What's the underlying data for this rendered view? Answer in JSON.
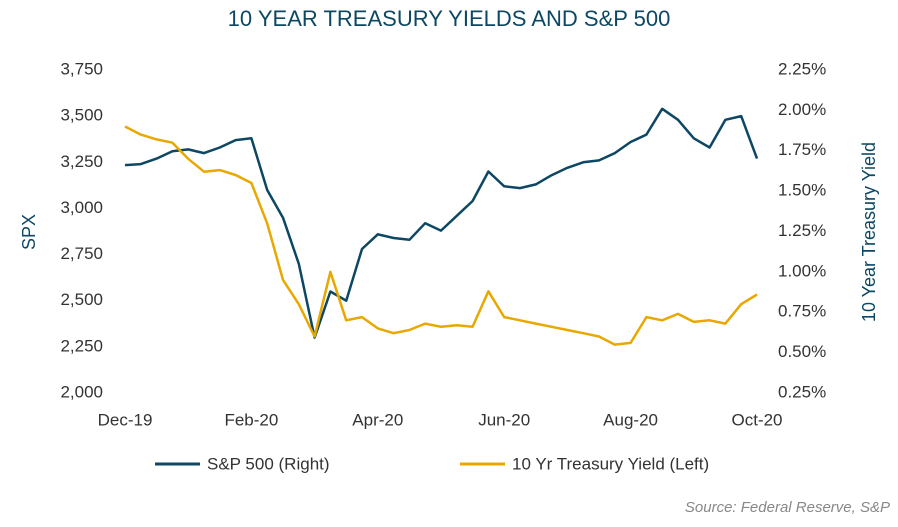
{
  "chart_data": {
    "type": "line",
    "title": "10 YEAR TREASURY YIELDS AND S&P 500",
    "y_label": "SPX",
    "y2_label": "10 Year Treasury Yield",
    "source": "Source: Federal Reserve, S&P",
    "xticks": [
      "Dec-19",
      "Feb-20",
      "Apr-20",
      "Jun-20",
      "Aug-20",
      "Oct-20"
    ],
    "ylim": [
      2000,
      3750
    ],
    "yticks": [
      {
        "value": 2000,
        "label": "2,000"
      },
      {
        "value": 2250,
        "label": "2,250"
      },
      {
        "value": 2500,
        "label": "2,500"
      },
      {
        "value": 2750,
        "label": "2,750"
      },
      {
        "value": 3000,
        "label": "3,000"
      },
      {
        "value": 3250,
        "label": "3,250"
      },
      {
        "value": 3500,
        "label": "3,500"
      },
      {
        "value": 3750,
        "label": "3,750"
      }
    ],
    "y2lim": [
      0.25,
      2.25
    ],
    "y2ticks": [
      {
        "value": 0.25,
        "label": "0.25%"
      },
      {
        "value": 0.5,
        "label": "0.50%"
      },
      {
        "value": 0.75,
        "label": "0.75%"
      },
      {
        "value": 1.0,
        "label": "1.00%"
      },
      {
        "value": 1.25,
        "label": "1.25%"
      },
      {
        "value": 1.5,
        "label": "1.50%"
      },
      {
        "value": 1.75,
        "label": "1.75%"
      },
      {
        "value": 2.0,
        "label": "2.00%"
      },
      {
        "value": 2.25,
        "label": "2.25%"
      }
    ],
    "grid": false,
    "legend": "bottom",
    "series": [
      {
        "name": "S&P 500 (Right)",
        "color": "#0d4763",
        "axis": "y",
        "values": [
          3235,
          3240,
          3270,
          3310,
          3320,
          3300,
          3330,
          3370,
          3380,
          3100,
          2950,
          2700,
          2300,
          2550,
          2500,
          2780,
          2860,
          2840,
          2830,
          2920,
          2880,
          2960,
          3040,
          3200,
          3120,
          3110,
          3130,
          3180,
          3220,
          3250,
          3260,
          3300,
          3360,
          3400,
          3540,
          3480,
          3380,
          3330,
          3480,
          3500,
          3270
        ]
      },
      {
        "name": "10 Yr Treasury Yield (Left)",
        "color": "#e8a800",
        "axis": "y2",
        "values": [
          1.9,
          1.85,
          1.82,
          1.8,
          1.7,
          1.62,
          1.63,
          1.6,
          1.55,
          1.3,
          0.95,
          0.8,
          0.6,
          1.0,
          0.7,
          0.72,
          0.65,
          0.62,
          0.64,
          0.68,
          0.66,
          0.67,
          0.66,
          0.88,
          0.72,
          0.7,
          0.68,
          0.66,
          0.64,
          0.62,
          0.6,
          0.55,
          0.56,
          0.72,
          0.7,
          0.74,
          0.69,
          0.7,
          0.68,
          0.8,
          0.86
        ]
      }
    ]
  }
}
